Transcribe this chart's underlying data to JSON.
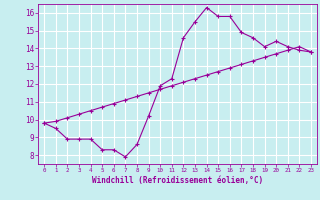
{
  "title": "",
  "xlabel": "Windchill (Refroidissement éolien,°C)",
  "ylabel": "",
  "background_color": "#c8eef0",
  "line_color": "#990099",
  "grid_color": "#ffffff",
  "x_data": [
    0,
    1,
    2,
    3,
    4,
    5,
    6,
    7,
    8,
    9,
    10,
    11,
    12,
    13,
    14,
    15,
    16,
    17,
    18,
    19,
    20,
    21,
    22,
    23
  ],
  "y_curve1": [
    9.8,
    9.5,
    8.9,
    8.9,
    8.9,
    8.3,
    8.3,
    7.9,
    8.6,
    10.2,
    11.9,
    12.3,
    14.6,
    15.5,
    16.3,
    15.8,
    15.8,
    14.9,
    14.6,
    14.1,
    14.4,
    14.1,
    13.9,
    13.8
  ],
  "y_line2": [
    9.8,
    9.9,
    10.1,
    10.3,
    10.5,
    10.7,
    10.9,
    11.1,
    11.3,
    11.5,
    11.7,
    11.9,
    12.1,
    12.3,
    12.5,
    12.7,
    12.9,
    13.1,
    13.3,
    13.5,
    13.7,
    13.9,
    14.1,
    13.8
  ],
  "xlim": [
    -0.5,
    23.5
  ],
  "ylim": [
    7.5,
    16.5
  ],
  "yticks": [
    8,
    9,
    10,
    11,
    12,
    13,
    14,
    15,
    16
  ],
  "xticks": [
    0,
    1,
    2,
    3,
    4,
    5,
    6,
    7,
    8,
    9,
    10,
    11,
    12,
    13,
    14,
    15,
    16,
    17,
    18,
    19,
    20,
    21,
    22,
    23
  ]
}
